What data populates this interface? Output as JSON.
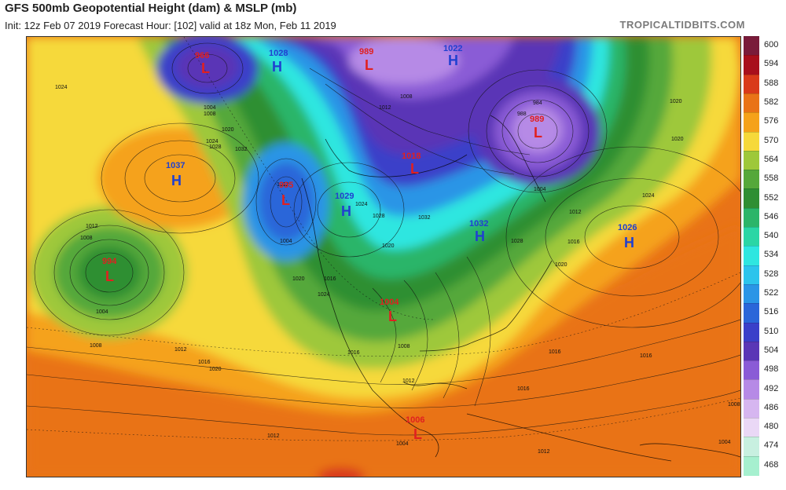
{
  "header": {
    "title": "GFS 500mb Geopotential Height (dam) & MSLP (mb)",
    "subtitle": "Init: 12z Feb 07 2019   Forecast Hour: [102]   valid at 18z Mon, Feb 11 2019",
    "brand": "TROPICALTIDBITS.COM"
  },
  "colorbar": [
    {
      "label": "600",
      "color": "#7a1b3a"
    },
    {
      "label": "594",
      "color": "#a80f1c"
    },
    {
      "label": "588",
      "color": "#d93a1a"
    },
    {
      "label": "582",
      "color": "#e97317"
    },
    {
      "label": "576",
      "color": "#f5a21a"
    },
    {
      "label": "570",
      "color": "#f6d93a"
    },
    {
      "label": "564",
      "color": "#9ec83a"
    },
    {
      "label": "558",
      "color": "#55a83a"
    },
    {
      "label": "552",
      "color": "#2f8f33"
    },
    {
      "label": "546",
      "color": "#2bb569"
    },
    {
      "label": "540",
      "color": "#2ad6a5"
    },
    {
      "label": "534",
      "color": "#2ee6e0"
    },
    {
      "label": "528",
      "color": "#2cc4ec"
    },
    {
      "label": "522",
      "color": "#2a95e6"
    },
    {
      "label": "516",
      "color": "#2a66d9"
    },
    {
      "label": "510",
      "color": "#3a3fc9"
    },
    {
      "label": "504",
      "color": "#5a36b6"
    },
    {
      "label": "498",
      "color": "#8a5bd6"
    },
    {
      "label": "492",
      "color": "#b68ae6"
    },
    {
      "label": "486",
      "color": "#d6b6f0"
    },
    {
      "label": "480",
      "color": "#ead8f6"
    },
    {
      "label": "474",
      "color": "#c8f0e0"
    },
    {
      "label": "468",
      "color": "#a6f0cf"
    }
  ],
  "pressure_centers": [
    {
      "type": "L",
      "value": "966",
      "color": "#e02020"
    },
    {
      "type": "H",
      "value": "1028",
      "color": "#2040d0"
    },
    {
      "type": "L",
      "value": "989",
      "color": "#e02020"
    },
    {
      "type": "H",
      "value": "1022",
      "color": "#2040d0"
    },
    {
      "type": "H",
      "value": "1037",
      "color": "#2040d0"
    },
    {
      "type": "L",
      "value": "1018",
      "color": "#e02020"
    },
    {
      "type": "L",
      "value": "989",
      "color": "#e02020"
    },
    {
      "type": "L",
      "value": "995",
      "color": "#e02020"
    },
    {
      "type": "H",
      "value": "1029",
      "color": "#2040d0"
    },
    {
      "type": "H",
      "value": "1032",
      "color": "#2040d0"
    },
    {
      "type": "H",
      "value": "1026",
      "color": "#2040d0"
    },
    {
      "type": "L",
      "value": "994",
      "color": "#e02020"
    },
    {
      "type": "L",
      "value": "1004",
      "color": "#e02020"
    },
    {
      "type": "L",
      "value": "1006",
      "color": "#e02020"
    }
  ],
  "isobar_labels": [
    "1024",
    "1024",
    "1028",
    "1032",
    "1020",
    "1012",
    "1008",
    "1004",
    "1008",
    "1004",
    "1008",
    "1012",
    "1016",
    "1020",
    "1024",
    "1004",
    "1012",
    "1016",
    "1020",
    "1024",
    "1028",
    "1032",
    "1012",
    "984",
    "988",
    "1004",
    "1008",
    "1012",
    "1016",
    "1020",
    "1020",
    "1024",
    "1028",
    "1020",
    "1016",
    "1008",
    "1016",
    "1016",
    "1012",
    "1016",
    "1012",
    "1008",
    "1004",
    "1004",
    "1020",
    "1012"
  ]
}
